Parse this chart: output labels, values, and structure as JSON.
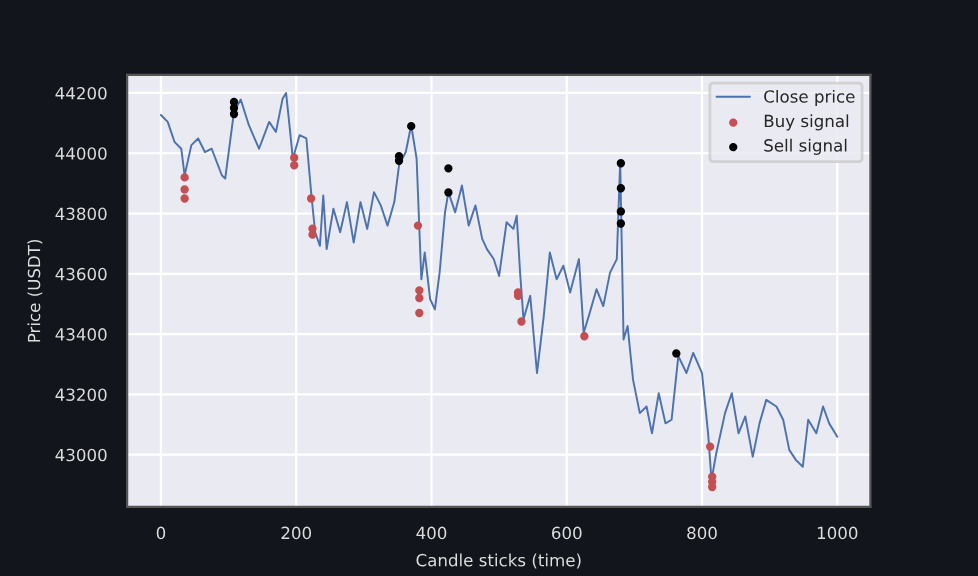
{
  "chart_data": {
    "type": "line",
    "xlabel": "Candle sticks (time)",
    "ylabel": "Price (USDT)",
    "xlim": [
      -50,
      1049
    ],
    "ylim": [
      42827,
      44260
    ],
    "xticks": [
      0,
      200,
      400,
      600,
      800,
      1000
    ],
    "yticks": [
      43000,
      43200,
      43400,
      43600,
      43800,
      44000,
      44200
    ],
    "grid": true,
    "legend": "top right",
    "series": [
      {
        "name": "Close price",
        "color": "#4c72b0",
        "x": [
          0,
          10,
          20,
          30,
          35,
          45,
          55,
          65,
          75,
          90,
          95,
          108,
          118,
          130,
          145,
          160,
          170,
          180,
          185,
          190,
          195,
          205,
          215,
          222,
          228,
          235,
          240,
          245,
          255,
          265,
          275,
          285,
          295,
          305,
          315,
          325,
          335,
          345,
          352,
          362,
          370,
          378,
          385,
          390,
          398,
          405,
          412,
          420,
          425,
          435,
          445,
          455,
          465,
          475,
          482,
          492,
          500,
          511,
          521,
          526,
          531,
          536,
          546,
          556,
          566,
          575,
          585,
          595,
          605,
          618,
          625,
          634,
          644,
          654,
          664,
          674,
          679,
          684,
          690,
          698,
          708,
          718,
          726,
          736,
          746,
          755,
          765,
          777,
          787,
          800,
          809,
          814,
          821,
          834,
          844,
          854,
          864,
          875,
          885,
          895,
          910,
          920,
          929,
          939,
          949,
          957,
          969,
          979,
          988,
          1000
        ],
        "values": [
          44127,
          44104,
          44038,
          44015,
          43927,
          44027,
          44049,
          44004,
          44015,
          43927,
          43916,
          44138,
          44178,
          44093,
          44015,
          44104,
          44071,
          44182,
          44200,
          44093,
          43982,
          44060,
          44049,
          43871,
          43738,
          43693,
          43860,
          43682,
          43816,
          43738,
          43838,
          43704,
          43838,
          43749,
          43871,
          43827,
          43760,
          43838,
          43960,
          44004,
          44093,
          43982,
          43582,
          43671,
          43516,
          43482,
          43604,
          43804,
          43871,
          43804,
          43893,
          43760,
          43827,
          43716,
          43682,
          43649,
          43593,
          43771,
          43749,
          43793,
          43604,
          43449,
          43527,
          43271,
          43460,
          43671,
          43582,
          43627,
          43538,
          43649,
          43404,
          43471,
          43549,
          43493,
          43604,
          43649,
          43971,
          43382,
          43427,
          43249,
          43138,
          43160,
          43071,
          43204,
          43104,
          43116,
          43327,
          43271,
          43338,
          43271,
          43071,
          42916,
          43004,
          43138,
          43204,
          43071,
          43127,
          42993,
          43104,
          43182,
          43160,
          43116,
          43016,
          42982,
          42960,
          43116,
          43071,
          43160,
          43104,
          43060
        ]
      },
      {
        "name": "Buy signal",
        "type": "scatter",
        "color": "#c44e52",
        "x": [
          35,
          35,
          35,
          197,
          197,
          222,
          224,
          224,
          380,
          382,
          382,
          382,
          528,
          528,
          533,
          626,
          812,
          815,
          815,
          815
        ],
        "values": [
          43920,
          43880,
          43850,
          43985,
          43960,
          43850,
          43750,
          43730,
          43760,
          43545,
          43520,
          43470,
          43538,
          43527,
          43442,
          43393,
          43027,
          42927,
          42910,
          42893
        ]
      },
      {
        "name": "Sell signal",
        "type": "scatter",
        "color": "#000000",
        "x": [
          108,
          108,
          108,
          352,
          352,
          370,
          425,
          425,
          680,
          680,
          680,
          680,
          762
        ],
        "values": [
          44170,
          44150,
          44130,
          43990,
          43975,
          44090,
          43950,
          43870,
          43967,
          43884,
          43807,
          43767,
          43336
        ]
      }
    ]
  }
}
